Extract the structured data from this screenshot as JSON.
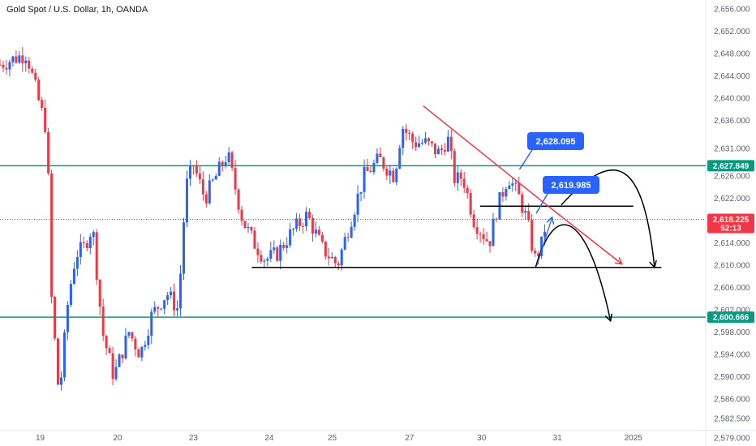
{
  "header": {
    "title": "Gold Spot / U.S. Dollar, 1h, OANDA"
  },
  "colors": {
    "up": "#2962ff",
    "down": "#f23645",
    "support": "#089981",
    "current": "#f23645",
    "trend": "#f23645",
    "drawing": "#000000",
    "callout": "#2962ff"
  },
  "chart_data": {
    "type": "candlestick",
    "title": "Gold Spot / U.S. Dollar, 1h, OANDA",
    "ylim": [
      2577.5,
      2657.5
    ],
    "y_ticks": [
      "2,656.000",
      "2,652.000",
      "2,648.000",
      "2,644.000",
      "2,640.000",
      "2,636.000",
      "2,631.000",
      "2,626.000",
      "2,622.000",
      "2,618.000",
      "2,614.000",
      "2,610.000",
      "2,606.000",
      "2,602.000",
      "2,598.000",
      "2,594.000",
      "2,590.000",
      "2,586.000",
      "2,582.500",
      "2,579.000"
    ],
    "x_ticks": [
      {
        "label": "19",
        "pos": 0.53
      },
      {
        "label": "20",
        "pos": 1.55
      },
      {
        "label": "23",
        "pos": 2.55
      },
      {
        "label": "24",
        "pos": 3.55
      },
      {
        "label": "25",
        "pos": 4.38
      },
      {
        "label": "27",
        "pos": 5.4
      },
      {
        "label": "30",
        "pos": 6.35
      },
      {
        "label": "31",
        "pos": 7.35
      },
      {
        "label": "2025",
        "pos": 8.35
      }
    ],
    "horizontal_levels": [
      {
        "name": "resistance",
        "value": 2627.849,
        "label": "2,627.849"
      },
      {
        "name": "support",
        "value": 2600.666,
        "label": "2,600.666"
      }
    ],
    "current_price": {
      "value": 2618.225,
      "label": "2,618.225",
      "countdown": "52:13"
    },
    "callouts": [
      {
        "label": "2,628.095",
        "value": 2628.095
      },
      {
        "label": "2,619.985",
        "value": 2619.985
      }
    ],
    "anchors": [
      {
        "t": 0.0,
        "p": 2646
      },
      {
        "t": 0.35,
        "p": 2648
      },
      {
        "t": 0.5,
        "p": 2640
      },
      {
        "t": 0.62,
        "p": 2634
      },
      {
        "t": 0.68,
        "p": 2604
      },
      {
        "t": 0.78,
        "p": 2586
      },
      {
        "t": 0.9,
        "p": 2604
      },
      {
        "t": 1.0,
        "p": 2612
      },
      {
        "t": 1.1,
        "p": 2613
      },
      {
        "t": 1.22,
        "p": 2617
      },
      {
        "t": 1.35,
        "p": 2598
      },
      {
        "t": 1.5,
        "p": 2590
      },
      {
        "t": 1.7,
        "p": 2598
      },
      {
        "t": 1.85,
        "p": 2594
      },
      {
        "t": 2.0,
        "p": 2601
      },
      {
        "t": 2.2,
        "p": 2605
      },
      {
        "t": 2.35,
        "p": 2602
      },
      {
        "t": 2.45,
        "p": 2624
      },
      {
        "t": 2.55,
        "p": 2628
      },
      {
        "t": 2.7,
        "p": 2622
      },
      {
        "t": 2.85,
        "p": 2626
      },
      {
        "t": 3.0,
        "p": 2630
      },
      {
        "t": 3.2,
        "p": 2618
      },
      {
        "t": 3.35,
        "p": 2614
      },
      {
        "t": 3.5,
        "p": 2611
      },
      {
        "t": 3.65,
        "p": 2612
      },
      {
        "t": 3.85,
        "p": 2616
      },
      {
        "t": 4.05,
        "p": 2619
      },
      {
        "t": 4.25,
        "p": 2613
      },
      {
        "t": 4.45,
        "p": 2610
      },
      {
        "t": 4.6,
        "p": 2617
      },
      {
        "t": 4.8,
        "p": 2626
      },
      {
        "t": 5.0,
        "p": 2629
      },
      {
        "t": 5.2,
        "p": 2626
      },
      {
        "t": 5.3,
        "p": 2635
      },
      {
        "t": 5.45,
        "p": 2632
      },
      {
        "t": 5.6,
        "p": 2632
      },
      {
        "t": 5.8,
        "p": 2630
      },
      {
        "t": 5.9,
        "p": 2633
      },
      {
        "t": 6.0,
        "p": 2625
      },
      {
        "t": 6.1,
        "p": 2626
      },
      {
        "t": 6.25,
        "p": 2618
      },
      {
        "t": 6.45,
        "p": 2614
      },
      {
        "t": 6.55,
        "p": 2620
      },
      {
        "t": 6.7,
        "p": 2626
      },
      {
        "t": 6.85,
        "p": 2622
      },
      {
        "t": 6.95,
        "p": 2618
      },
      {
        "t": 7.05,
        "p": 2611
      },
      {
        "t": 7.15,
        "p": 2614
      },
      {
        "t": 7.2,
        "p": 2618
      }
    ],
    "annotations": {
      "trendline": [
        [
          5.58,
          2638.6
        ],
        [
          7.19,
          2621.0
        ]
      ],
      "horizontal_lines": [
        {
          "from": 3.32,
          "to": 8.72,
          "value": 2609.6
        },
        {
          "from": 6.33,
          "to": 8.35,
          "value": 2620.6
        }
      ],
      "arrows": [
        {
          "path": [
            [
              7.19,
              2621.0
            ],
            [
              8.2,
              2610.2
            ]
          ],
          "color": "red"
        },
        {
          "path": [
            [
              7.06,
              2609.5
            ],
            [
              7.4,
              2620.8
            ],
            [
              7.85,
              2614.0
            ],
            [
              8.05,
              2600.0
            ]
          ],
          "color": "black"
        },
        {
          "path": [
            [
              7.4,
              2620.8
            ],
            [
              7.8,
              2627.2
            ],
            [
              8.27,
              2626.0
            ],
            [
              8.63,
              2609.6
            ]
          ],
          "color": "black"
        }
      ],
      "small_arrow": [
        [
          7.08,
          2610.0
        ],
        [
          7.28,
          2618.6
        ]
      ]
    }
  }
}
